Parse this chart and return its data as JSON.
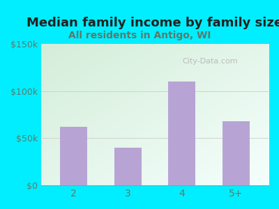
{
  "title": "Median family income by family size",
  "subtitle": "All residents in Antigo, WI",
  "categories": [
    "2",
    "3",
    "4",
    "5+"
  ],
  "values": [
    62000,
    40000,
    110000,
    68000
  ],
  "bar_color": "#b8a4d4",
  "title_fontsize": 13,
  "subtitle_fontsize": 10,
  "title_color": "#222222",
  "subtitle_color": "#5a7a6a",
  "tick_color": "#5a7a6a",
  "background_outer": "#00eeff",
  "ylim": [
    0,
    150000
  ],
  "yticks": [
    0,
    50000,
    100000,
    150000
  ],
  "ytick_labels": [
    "$0",
    "$50k",
    "$100k",
    "$150k"
  ],
  "watermark": "City-Data.com",
  "plot_bg_topleft": "#c8ecd8",
  "plot_bg_bottomright": "#f0faf8"
}
